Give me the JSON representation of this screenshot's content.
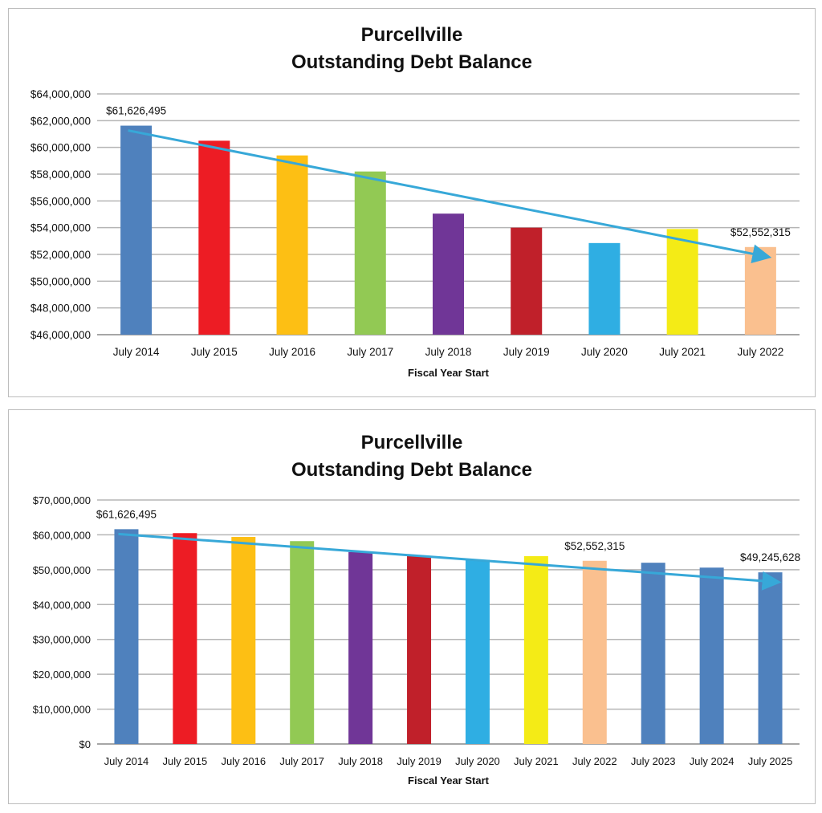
{
  "chart_data": [
    {
      "type": "bar",
      "title": [
        "Purcellville",
        "Outstanding Debt Balance"
      ],
      "xlabel": "Fiscal Year Start",
      "ylabel": "",
      "ylim": [
        46000000,
        64000000
      ],
      "ytick_step": 2000000,
      "yticks": [
        "$46,000,000",
        "$48,000,000",
        "$50,000,000",
        "$52,000,000",
        "$54,000,000",
        "$56,000,000",
        "$58,000,000",
        "$60,000,000",
        "$62,000,000",
        "$64,000,000"
      ],
      "categories": [
        "July 2014",
        "July 2015",
        "July 2016",
        "July 2017",
        "July 2018",
        "July 2019",
        "July 2020",
        "July 2021",
        "July 2022"
      ],
      "values": [
        61626495,
        60500000,
        59400000,
        58200000,
        55050000,
        54000000,
        52850000,
        53900000,
        52552315
      ],
      "colors": [
        "#4f81bd",
        "#ed1c24",
        "#fdbf14",
        "#92c954",
        "#703697",
        "#c0202a",
        "#2faee3",
        "#f4eb16",
        "#fac08f"
      ],
      "grid": true,
      "annotations": [
        {
          "index": 0,
          "text": "$61,626,495"
        },
        {
          "index": 8,
          "text": "$52,552,315"
        }
      ],
      "trend_arrow": {
        "from_index": 0,
        "to_index": 8,
        "color": "#37a8d8"
      }
    },
    {
      "type": "bar",
      "title": [
        "Purcellville",
        "Outstanding Debt Balance"
      ],
      "xlabel": "Fiscal Year Start",
      "ylabel": "",
      "ylim": [
        0,
        70000000
      ],
      "ytick_step": 10000000,
      "yticks": [
        "$0",
        "$10,000,000",
        "$20,000,000",
        "$30,000,000",
        "$40,000,000",
        "$50,000,000",
        "$60,000,000",
        "$70,000,000"
      ],
      "categories": [
        "July 2014",
        "July 2015",
        "July 2016",
        "July 2017",
        "July 2018",
        "July 2019",
        "July 2020",
        "July 2021",
        "July 2022",
        "July 2023",
        "July 2024",
        "July 2025"
      ],
      "values": [
        61626495,
        60500000,
        59400000,
        58200000,
        55050000,
        54000000,
        52850000,
        53900000,
        52552315,
        52000000,
        50600000,
        49245628
      ],
      "colors": [
        "#4f81bd",
        "#ed1c24",
        "#fdbf14",
        "#92c954",
        "#703697",
        "#c0202a",
        "#2faee3",
        "#f4eb16",
        "#fac08f",
        "#4f81bd",
        "#4f81bd",
        "#4f81bd"
      ],
      "grid": true,
      "annotations": [
        {
          "index": 0,
          "text": "$61,626,495"
        },
        {
          "index": 8,
          "text": "$52,552,315"
        },
        {
          "index": 11,
          "text": "$49,245,628"
        }
      ],
      "trend_arrow": {
        "from_index": 0,
        "to_index": 11,
        "color": "#37a8d8"
      }
    }
  ]
}
